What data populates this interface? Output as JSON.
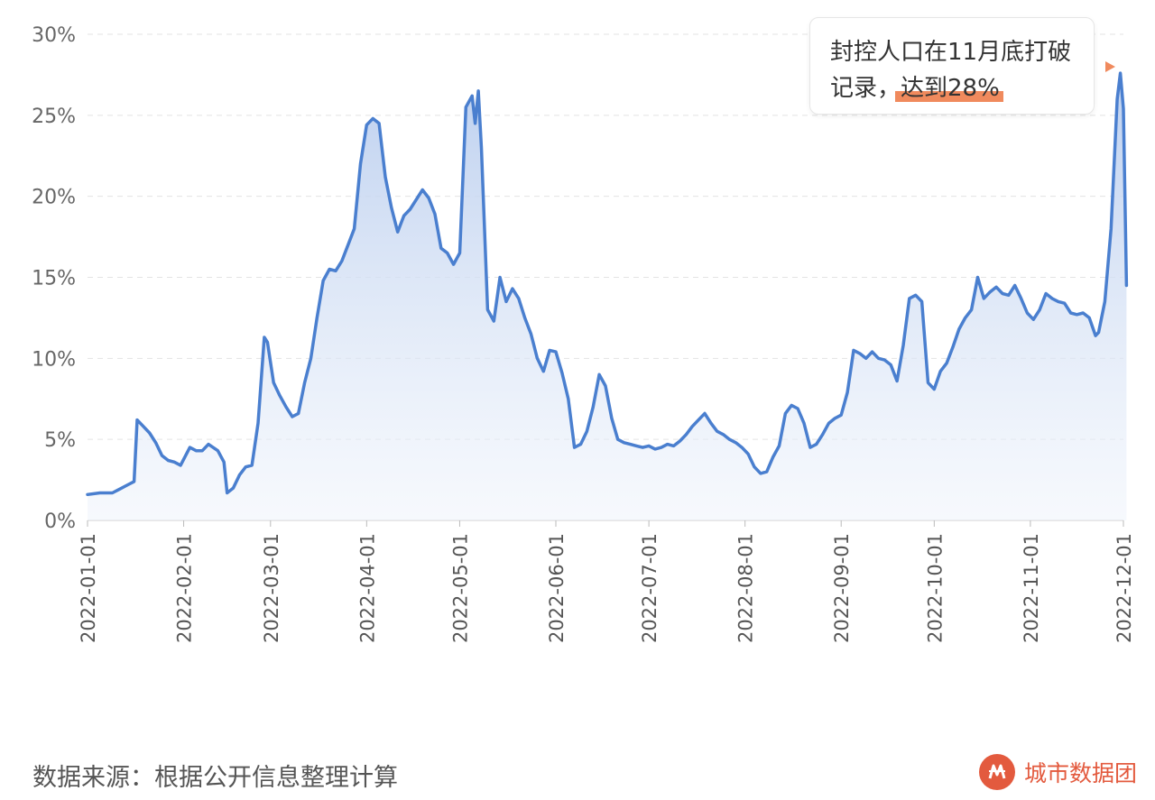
{
  "chart_data": {
    "type": "area",
    "title": "",
    "xlabel": "",
    "ylabel": "",
    "ylim": [
      0,
      0.3
    ],
    "y_ticks": [
      "0%",
      "5%",
      "10%",
      "15%",
      "20%",
      "25%",
      "30%"
    ],
    "x_ticks": [
      "2022-01-01",
      "2022-02-01",
      "2022-03-01",
      "2022-04-01",
      "2022-05-01",
      "2022-06-01",
      "2022-07-01",
      "2022-08-01",
      "2022-09-01",
      "2022-10-01",
      "2022-11-01",
      "2022-12-01"
    ],
    "grid": "horizontal dashed",
    "series": [
      {
        "color": "#4a7fcf",
        "points": [
          [
            "2022-01-01",
            0.016
          ],
          [
            "2022-01-05",
            0.017
          ],
          [
            "2022-01-09",
            0.017
          ],
          [
            "2022-01-11",
            0.019
          ],
          [
            "2022-01-14",
            0.022
          ],
          [
            "2022-01-16",
            0.024
          ],
          [
            "2022-01-17",
            0.062
          ],
          [
            "2022-01-19",
            0.058
          ],
          [
            "2022-01-21",
            0.054
          ],
          [
            "2022-01-23",
            0.048
          ],
          [
            "2022-01-25",
            0.04
          ],
          [
            "2022-01-27",
            0.037
          ],
          [
            "2022-01-29",
            0.036
          ],
          [
            "2022-01-31",
            0.034
          ],
          [
            "2022-02-03",
            0.045
          ],
          [
            "2022-02-05",
            0.043
          ],
          [
            "2022-02-07",
            0.043
          ],
          [
            "2022-02-09",
            0.047
          ],
          [
            "2022-02-12",
            0.043
          ],
          [
            "2022-02-14",
            0.036
          ],
          [
            "2022-02-15",
            0.017
          ],
          [
            "2022-02-17",
            0.02
          ],
          [
            "2022-02-19",
            0.028
          ],
          [
            "2022-02-21",
            0.033
          ],
          [
            "2022-02-23",
            0.034
          ],
          [
            "2022-02-25",
            0.06
          ],
          [
            "2022-02-27",
            0.113
          ],
          [
            "2022-02-28",
            0.11
          ],
          [
            "2022-03-02",
            0.085
          ],
          [
            "2022-03-04",
            0.077
          ],
          [
            "2022-03-06",
            0.07
          ],
          [
            "2022-03-08",
            0.064
          ],
          [
            "2022-03-10",
            0.066
          ],
          [
            "2022-03-12",
            0.085
          ],
          [
            "2022-03-14",
            0.1
          ],
          [
            "2022-03-16",
            0.125
          ],
          [
            "2022-03-18",
            0.148
          ],
          [
            "2022-03-20",
            0.155
          ],
          [
            "2022-03-22",
            0.154
          ],
          [
            "2022-03-24",
            0.16
          ],
          [
            "2022-03-26",
            0.17
          ],
          [
            "2022-03-28",
            0.18
          ],
          [
            "2022-03-30",
            0.22
          ],
          [
            "2022-04-01",
            0.244
          ],
          [
            "2022-04-03",
            0.248
          ],
          [
            "2022-04-05",
            0.245
          ],
          [
            "2022-04-07",
            0.212
          ],
          [
            "2022-04-09",
            0.193
          ],
          [
            "2022-04-11",
            0.178
          ],
          [
            "2022-04-13",
            0.188
          ],
          [
            "2022-04-15",
            0.192
          ],
          [
            "2022-04-17",
            0.198
          ],
          [
            "2022-04-19",
            0.204
          ],
          [
            "2022-04-21",
            0.199
          ],
          [
            "2022-04-23",
            0.189
          ],
          [
            "2022-04-25",
            0.168
          ],
          [
            "2022-04-27",
            0.165
          ],
          [
            "2022-04-29",
            0.158
          ],
          [
            "2022-05-01",
            0.165
          ],
          [
            "2022-05-03",
            0.255
          ],
          [
            "2022-05-05",
            0.262
          ],
          [
            "2022-05-06",
            0.245
          ],
          [
            "2022-05-07",
            0.265
          ],
          [
            "2022-05-08",
            0.23
          ],
          [
            "2022-05-10",
            0.13
          ],
          [
            "2022-05-12",
            0.123
          ],
          [
            "2022-05-14",
            0.15
          ],
          [
            "2022-05-16",
            0.135
          ],
          [
            "2022-05-18",
            0.143
          ],
          [
            "2022-05-20",
            0.137
          ],
          [
            "2022-05-22",
            0.125
          ],
          [
            "2022-05-24",
            0.115
          ],
          [
            "2022-05-26",
            0.1
          ],
          [
            "2022-05-28",
            0.092
          ],
          [
            "2022-05-30",
            0.105
          ],
          [
            "2022-06-01",
            0.104
          ],
          [
            "2022-06-03",
            0.091
          ],
          [
            "2022-06-05",
            0.075
          ],
          [
            "2022-06-07",
            0.045
          ],
          [
            "2022-06-09",
            0.047
          ],
          [
            "2022-06-11",
            0.055
          ],
          [
            "2022-06-13",
            0.07
          ],
          [
            "2022-06-15",
            0.09
          ],
          [
            "2022-06-17",
            0.083
          ],
          [
            "2022-06-19",
            0.063
          ],
          [
            "2022-06-21",
            0.05
          ],
          [
            "2022-06-23",
            0.048
          ],
          [
            "2022-06-25",
            0.047
          ],
          [
            "2022-06-27",
            0.046
          ],
          [
            "2022-06-29",
            0.045
          ],
          [
            "2022-07-01",
            0.046
          ],
          [
            "2022-07-03",
            0.044
          ],
          [
            "2022-07-05",
            0.045
          ],
          [
            "2022-07-07",
            0.047
          ],
          [
            "2022-07-09",
            0.046
          ],
          [
            "2022-07-11",
            0.049
          ],
          [
            "2022-07-13",
            0.053
          ],
          [
            "2022-07-15",
            0.058
          ],
          [
            "2022-07-17",
            0.062
          ],
          [
            "2022-07-19",
            0.066
          ],
          [
            "2022-07-21",
            0.06
          ],
          [
            "2022-07-23",
            0.055
          ],
          [
            "2022-07-25",
            0.053
          ],
          [
            "2022-07-27",
            0.05
          ],
          [
            "2022-07-29",
            0.048
          ],
          [
            "2022-07-31",
            0.045
          ],
          [
            "2022-08-02",
            0.041
          ],
          [
            "2022-08-04",
            0.033
          ],
          [
            "2022-08-06",
            0.029
          ],
          [
            "2022-08-08",
            0.03
          ],
          [
            "2022-08-10",
            0.039
          ],
          [
            "2022-08-12",
            0.046
          ],
          [
            "2022-08-14",
            0.066
          ],
          [
            "2022-08-16",
            0.071
          ],
          [
            "2022-08-18",
            0.069
          ],
          [
            "2022-08-20",
            0.06
          ],
          [
            "2022-08-22",
            0.045
          ],
          [
            "2022-08-24",
            0.047
          ],
          [
            "2022-08-26",
            0.053
          ],
          [
            "2022-08-28",
            0.06
          ],
          [
            "2022-08-30",
            0.063
          ],
          [
            "2022-09-01",
            0.065
          ],
          [
            "2022-09-03",
            0.079
          ],
          [
            "2022-09-05",
            0.105
          ],
          [
            "2022-09-07",
            0.103
          ],
          [
            "2022-09-09",
            0.1
          ],
          [
            "2022-09-11",
            0.104
          ],
          [
            "2022-09-13",
            0.1
          ],
          [
            "2022-09-15",
            0.099
          ],
          [
            "2022-09-17",
            0.096
          ],
          [
            "2022-09-19",
            0.086
          ],
          [
            "2022-09-21",
            0.108
          ],
          [
            "2022-09-23",
            0.137
          ],
          [
            "2022-09-25",
            0.139
          ],
          [
            "2022-09-27",
            0.135
          ],
          [
            "2022-09-29",
            0.085
          ],
          [
            "2022-10-01",
            0.081
          ],
          [
            "2022-10-03",
            0.092
          ],
          [
            "2022-10-05",
            0.097
          ],
          [
            "2022-10-07",
            0.107
          ],
          [
            "2022-10-09",
            0.118
          ],
          [
            "2022-10-11",
            0.125
          ],
          [
            "2022-10-13",
            0.13
          ],
          [
            "2022-10-15",
            0.15
          ],
          [
            "2022-10-17",
            0.137
          ],
          [
            "2022-10-19",
            0.141
          ],
          [
            "2022-10-21",
            0.144
          ],
          [
            "2022-10-23",
            0.14
          ],
          [
            "2022-10-25",
            0.139
          ],
          [
            "2022-10-27",
            0.145
          ],
          [
            "2022-10-29",
            0.137
          ],
          [
            "2022-10-31",
            0.128
          ],
          [
            "2022-11-02",
            0.124
          ],
          [
            "2022-11-04",
            0.13
          ],
          [
            "2022-11-06",
            0.14
          ],
          [
            "2022-11-08",
            0.137
          ],
          [
            "2022-11-10",
            0.135
          ],
          [
            "2022-11-12",
            0.134
          ],
          [
            "2022-11-14",
            0.128
          ],
          [
            "2022-11-16",
            0.127
          ],
          [
            "2022-11-18",
            0.128
          ],
          [
            "2022-11-20",
            0.125
          ],
          [
            "2022-11-22",
            0.114
          ],
          [
            "2022-11-23",
            0.116
          ],
          [
            "2022-11-25",
            0.135
          ],
          [
            "2022-11-27",
            0.18
          ],
          [
            "2022-11-29",
            0.26
          ],
          [
            "2022-11-30",
            0.276
          ],
          [
            "2022-12-01",
            0.254
          ],
          [
            "2022-12-02",
            0.145
          ]
        ]
      }
    ]
  },
  "annotation": {
    "line1": "封控人口在11月底打破",
    "line2_prefix": "记录，",
    "line2_highlight": "达到28%",
    "highlight_color": "#f08a5d"
  },
  "footer": {
    "source": "数据来源：根据公开信息整理计算",
    "brand": "城市数据团",
    "brand_color": "#e35a3e"
  }
}
